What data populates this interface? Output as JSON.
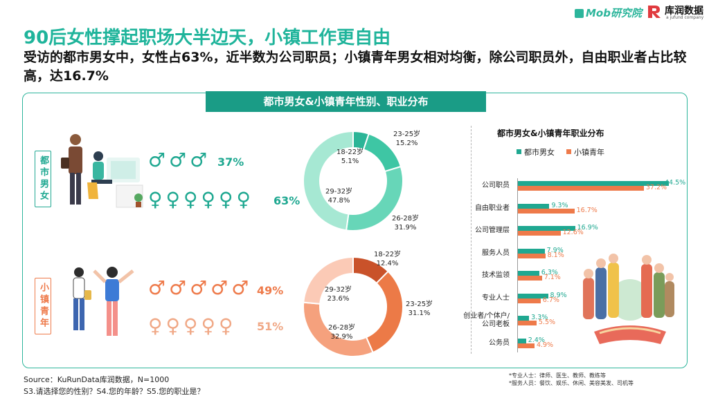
{
  "header": {
    "title": "90后女性撑起职场大半边天，小镇工作更自由",
    "subtitle": "受访的都市男女中，女性占63%，近半数为公司职员；小镇青年男女相对均衡，除公司职员外，自由职业者占比较高，达16.7%",
    "logo_mob": "Mob研究院",
    "logo_kr": "库润数据",
    "logo_kr_sub": "a jufund company"
  },
  "banner": "都市男女&小镇青年性别、职业分布",
  "colors": {
    "teal": "#1fa891",
    "orange": "#ee7a4a",
    "dark_teal": "#1a9c86"
  },
  "chart_data": [
    {
      "type": "pictogram",
      "group": "都市男女",
      "male_symbol": "♂♂♂",
      "female_symbol": "♀♀♀♀♀♀",
      "male_pct": "37%",
      "female_pct": "63%",
      "male": 37,
      "female": 63
    },
    {
      "type": "pie",
      "group": "都市男女",
      "donut": true,
      "slices": [
        {
          "label": "18-22岁",
          "value": 5.1,
          "text": "5.1%"
        },
        {
          "label": "23-25岁",
          "value": 15.2,
          "text": "15.2%"
        },
        {
          "label": "26-28岁",
          "value": 31.9,
          "text": "31.9%"
        },
        {
          "label": "29-32岁",
          "value": 47.8,
          "text": "47.8%"
        }
      ],
      "colors": [
        "#2bb597",
        "#3ec6a4",
        "#67d6b8",
        "#a6e8d3"
      ]
    },
    {
      "type": "pictogram",
      "group": "小镇青年",
      "male_symbol": "♂♂♂♂♂",
      "female_symbol": "♀♀♀♀♀",
      "male_pct": "49%",
      "female_pct": "51%",
      "male": 49,
      "female": 51
    },
    {
      "type": "pie",
      "group": "小镇青年",
      "donut": true,
      "slices": [
        {
          "label": "18-22岁",
          "value": 12.4,
          "text": "12.4%"
        },
        {
          "label": "23-25岁",
          "value": 31.1,
          "text": "31.1%"
        },
        {
          "label": "26-28岁",
          "value": 32.9,
          "text": "32.9%"
        },
        {
          "label": "29-32岁",
          "value": 23.6,
          "text": "23.6%"
        }
      ],
      "colors": [
        "#c9522a",
        "#ec7a47",
        "#f5a17d",
        "#fbcab6"
      ]
    },
    {
      "type": "bar",
      "orientation": "horizontal",
      "title": "都市男女&小镇青年职业分布",
      "categories": [
        "公司职员",
        "自由职业者",
        "公司管理层",
        "服务人员",
        "技术监领",
        "专业人士",
        "创业者/个体户/公司老板",
        "公务员"
      ],
      "series": [
        {
          "name": "都市男女",
          "values": [
            44.5,
            9.3,
            16.9,
            7.9,
            6.3,
            8.9,
            3.3,
            2.4
          ],
          "labels": [
            "44.5%",
            "9.3%",
            "16.9%",
            "7.9%",
            "6.3%",
            "8.9%",
            "3.3%",
            "2.4%"
          ]
        },
        {
          "name": "小镇青年",
          "values": [
            37.2,
            16.7,
            12.6,
            8.1,
            7.1,
            6.7,
            5.5,
            4.9
          ],
          "labels": [
            "37.2%",
            "16.7%",
            "12.6%",
            "8.1%",
            "7.1%",
            "6.7%",
            "5.5%",
            "4.9%"
          ]
        }
      ],
      "xlim": [
        0,
        45
      ]
    }
  ],
  "left": {
    "city_label": "都市男女",
    "town_label": "小镇青年"
  },
  "footer": {
    "source": "Source：KuRunData库润数据，N=1000",
    "questions": "S3.请选择您的性别？S4.您的年龄？S5.您的职业是？",
    "note1": "*专业人士：律师、医生、教师、教练等",
    "note2": "*服务人员：餐饮、娱乐、休闲、美容美发、司机等"
  }
}
